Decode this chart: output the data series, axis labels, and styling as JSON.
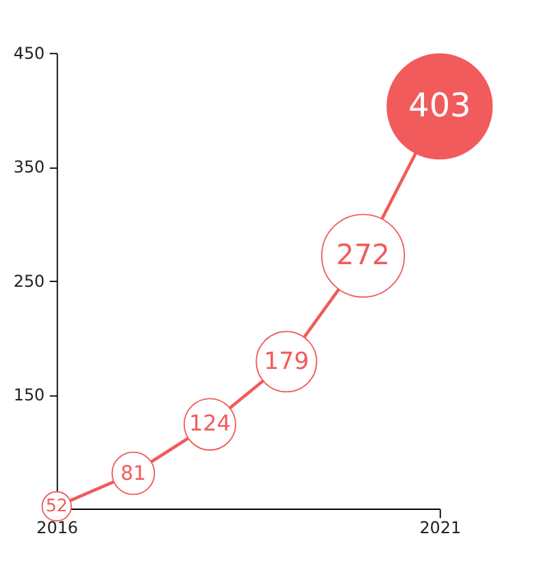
{
  "chart_data": {
    "type": "bubble",
    "x": [
      2016,
      2017,
      2018,
      2019,
      2020,
      2021
    ],
    "series": [
      {
        "color": "#f15b5b",
        "colors": [
          "#ffffff",
          "#ffffff",
          "#ffffff",
          "#ffffff",
          "#ffffff",
          "#f15b5b"
        ],
        "values": [
          52,
          81,
          124,
          179,
          272,
          403
        ],
        "sizes": [
          0.077,
          0.163,
          0.24,
          0.33,
          0.62,
          1
        ]
      }
    ],
    "line_style": "solid",
    "data_labels": true,
    "xlim": [
      2016,
      2021
    ],
    "xticks": [
      2016,
      2021
    ],
    "ylim": [
      50,
      450
    ],
    "yticks": [
      150,
      250,
      350,
      450
    ],
    "grid": false
  }
}
